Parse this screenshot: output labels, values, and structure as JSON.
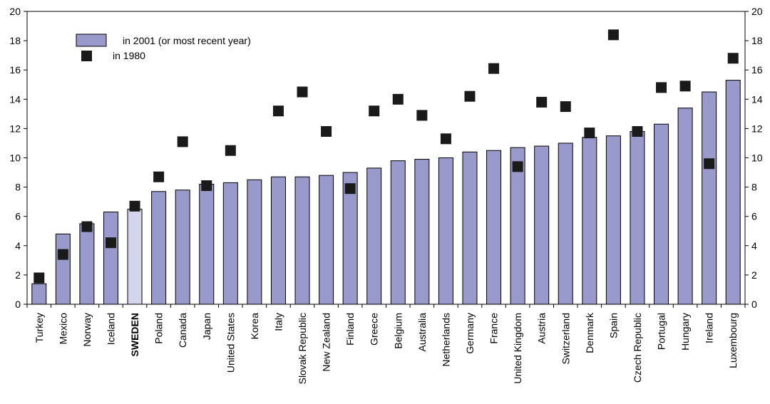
{
  "chart_data": {
    "type": "bar",
    "categories": [
      "Turkey",
      "Mexico",
      "Norway",
      "Iceland",
      "SWEDEN",
      "Poland",
      "Canada",
      "Japan",
      "United States",
      "Korea",
      "Italy",
      "Slovak Republic",
      "New Zealand",
      "Finland",
      "Greece",
      "Belgium",
      "Australia",
      "Netherlands",
      "Germany",
      "France",
      "United Kingdom",
      "Austria",
      "Switzerland",
      "Denmark",
      "Spain",
      "Czech Republic",
      "Portugal",
      "Hungary",
      "Ireland",
      "Luxembourg"
    ],
    "highlight_category": "SWEDEN",
    "series": [
      {
        "name": "in 2001 (or most recent year)",
        "kind": "bar",
        "color": "#9999cc",
        "highlight_color": "#d4d4ec",
        "values": [
          1.4,
          4.8,
          5.5,
          6.3,
          6.5,
          7.7,
          7.8,
          8.2,
          8.3,
          8.5,
          8.7,
          8.7,
          8.8,
          9.0,
          9.3,
          9.8,
          9.9,
          10.0,
          10.4,
          10.5,
          10.7,
          10.8,
          11.0,
          11.4,
          11.5,
          11.8,
          12.3,
          13.4,
          14.5,
          15.3
        ]
      },
      {
        "name": "in 1980",
        "kind": "marker",
        "color": "#1a1a1a",
        "values": [
          1.8,
          3.4,
          5.3,
          4.2,
          6.7,
          8.7,
          11.1,
          8.1,
          10.5,
          null,
          13.2,
          14.5,
          11.8,
          7.9,
          13.2,
          14.0,
          12.9,
          11.3,
          14.2,
          16.1,
          9.4,
          13.8,
          13.5,
          11.7,
          18.4,
          11.8,
          14.8,
          14.9,
          9.6,
          16.8
        ]
      }
    ],
    "ylim": [
      0,
      20
    ],
    "yticks": [
      0,
      2,
      4,
      6,
      8,
      10,
      12,
      14,
      16,
      18,
      20
    ],
    "xlabel": "",
    "ylabel": "",
    "title": "",
    "legend_position": "top-left",
    "grid": false,
    "right_axis_mirror": true
  }
}
